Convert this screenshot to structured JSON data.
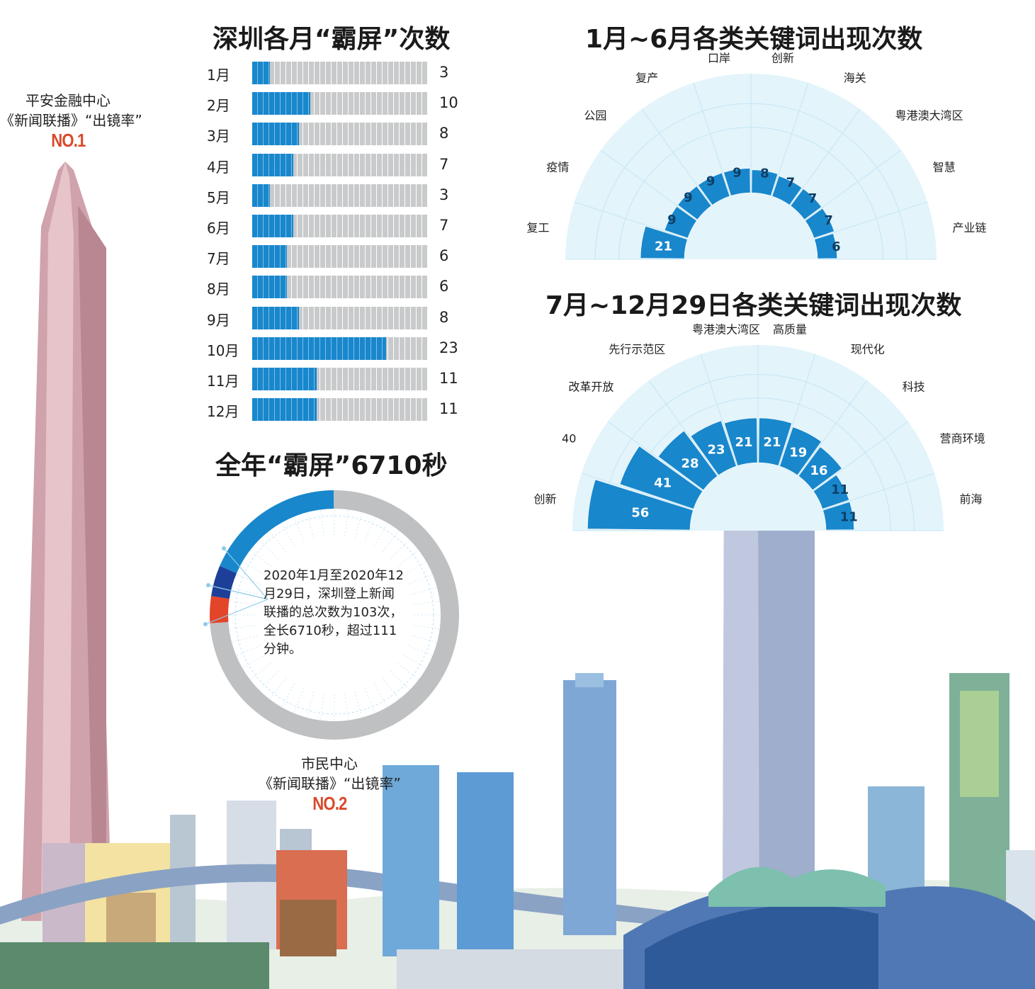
{
  "monthly_chart": {
    "title": "深圳各月“霸屏”次数"
  },
  "year_total": {
    "title": "全年“霸屏”6710秒",
    "note": "2020年1月至2020年12月29日，深圳登上新闻联播的总次数为103次，全长6710秒，超过111分钟。"
  },
  "building_top": {
    "name": "平安金融中心",
    "subtitle": "《新闻联播》“出镜率”",
    "rank": "NO.1"
  },
  "building_bottom": {
    "name": "市民中心",
    "subtitle": "《新闻联播》“出镜率”",
    "rank": "NO.2"
  },
  "keywords_h1": {
    "title": "1月~6月各类关键词出现次数"
  },
  "keywords_h2": {
    "title": "7月~12月29日各类关键词出现次数"
  },
  "colors": {
    "bar_blue": "#1987cc",
    "bar_gray": "#c9cacb",
    "fan_bg": "#e3f4fb",
    "donut_blue": "#1987cc",
    "donut_navy": "#1d3f98",
    "donut_red": "#e3452a",
    "donut_gray": "#bfc0c1",
    "rank_red": "#d94a2a"
  },
  "chart_data": [
    {
      "type": "bar",
      "orientation": "horizontal",
      "title": "深圳各月“霸屏”次数",
      "categories": [
        "1月",
        "2月",
        "3月",
        "4月",
        "5月",
        "6月",
        "7月",
        "8月",
        "9月",
        "10月",
        "11月",
        "12月"
      ],
      "values": [
        3,
        10,
        8,
        7,
        3,
        7,
        6,
        6,
        8,
        23,
        11,
        11
      ],
      "value_labels": [
        "3",
        "10",
        "8",
        "7",
        "3",
        "7",
        "6",
        "6",
        "8",
        "23",
        "11",
        "11"
      ],
      "xlim": [
        0,
        30
      ]
    },
    {
      "type": "bar",
      "variant": "radial-fan",
      "title": "1月~6月各类关键词出现次数",
      "categories": [
        "复工",
        "疫情",
        "公园",
        "复产",
        "口岸",
        "创新",
        "海关",
        "粤港澳大湾区",
        "智慧",
        "产业链"
      ],
      "values": [
        21,
        9,
        9,
        9,
        9,
        8,
        7,
        7,
        7,
        6
      ],
      "value_labels": [
        "21",
        "9",
        "9",
        "9",
        "9",
        "8",
        "7",
        "7",
        "7",
        "6"
      ],
      "rlim": [
        0,
        60
      ]
    },
    {
      "type": "bar",
      "variant": "radial-fan",
      "title": "7月~12月29日各类关键词出现次数",
      "categories": [
        "创新",
        "40",
        "改革开放",
        "先行示范区",
        "粤港澳大湾区",
        "高质量",
        "现代化",
        "科技",
        "营商环境",
        "前海"
      ],
      "values": [
        56,
        41,
        28,
        23,
        21,
        21,
        19,
        16,
        11,
        11
      ],
      "value_labels": [
        "56",
        "41",
        "28",
        "23",
        "21",
        "21",
        "19",
        "16",
        "11",
        "11"
      ],
      "rlim": [
        0,
        60
      ]
    },
    {
      "type": "pie",
      "variant": "donut",
      "title": "全年“霸屏”6710秒",
      "segments": [
        {
          "fraction": 0.185,
          "color": "#1987cc"
        },
        {
          "fraction": 0.04,
          "color": "#1d3f98"
        },
        {
          "fraction": 0.035,
          "color": "#e3452a"
        },
        {
          "fraction": 0.74,
          "color": "#bfc0c1"
        }
      ]
    }
  ]
}
